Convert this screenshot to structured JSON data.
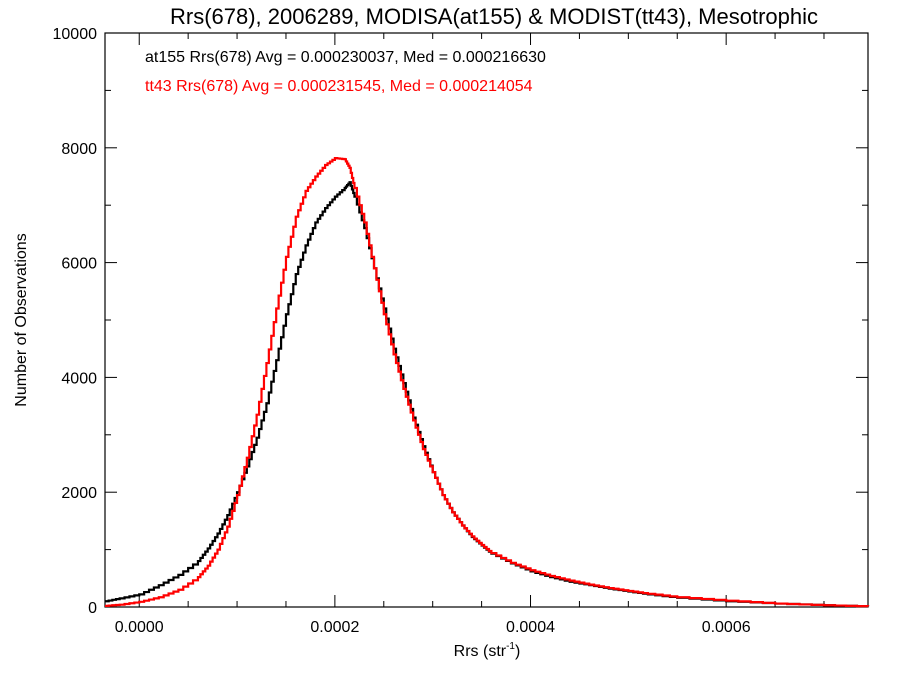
{
  "chart_data": {
    "type": "line",
    "title": "Rrs(678), 2006289, MODISA(at155) & MODIST(tt43), Mesotrophic",
    "xlabel": "Rrs (str",
    "xlabel_sup": "-1",
    "xlabel_end": ")",
    "ylabel": "Number of Observations",
    "xlim": [
      -3.5e-05,
      0.000745
    ],
    "ylim": [
      0,
      10000
    ],
    "x_ticks": [
      0.0,
      0.0002,
      0.0004,
      0.0006
    ],
    "x_tick_labels": [
      "0.0000",
      "0.0002",
      "0.0004",
      "0.0006"
    ],
    "y_ticks": [
      0,
      2000,
      4000,
      6000,
      8000,
      10000
    ],
    "y_tick_labels": [
      "0",
      "2000",
      "4000",
      "6000",
      "8000",
      "10000"
    ],
    "annotations": [
      {
        "text": "at155 Rrs(678) Avg = 0.000230037, Med = 0.000216630",
        "color": "#000000"
      },
      {
        "text": "tt43 Rrs(678) Avg = 0.000231545, Med = 0.000214054",
        "color": "#ff0000"
      }
    ],
    "series": [
      {
        "color": "#000000",
        "step": true,
        "x": [
          -3.5e-05,
          -2e-05,
          0.0,
          2e-05,
          4e-05,
          6e-05,
          7e-05,
          8e-05,
          9e-05,
          0.0001,
          0.00011,
          0.00012,
          0.00013,
          0.00014,
          0.00015,
          0.00016,
          0.00017,
          0.00018,
          0.00019,
          0.0002,
          0.00021,
          0.000215,
          0.00022,
          0.00023,
          0.00024,
          0.00025,
          0.00026,
          0.00027,
          0.00028,
          0.00029,
          0.0003,
          0.00031,
          0.00032,
          0.00033,
          0.00034,
          0.00035,
          0.00036,
          0.00038,
          0.0004,
          0.00042,
          0.00044,
          0.00046,
          0.00048,
          0.0005,
          0.00052,
          0.00055,
          0.0006,
          0.00065,
          0.0007,
          0.000745
        ],
        "y": [
          100,
          150,
          220,
          380,
          560,
          800,
          1020,
          1280,
          1600,
          2000,
          2450,
          2950,
          3550,
          4300,
          5100,
          5800,
          6300,
          6700,
          6950,
          7150,
          7300,
          7400,
          7150,
          6600,
          5900,
          5200,
          4500,
          3900,
          3300,
          2800,
          2350,
          1950,
          1650,
          1420,
          1220,
          1070,
          930,
          760,
          620,
          520,
          440,
          380,
          320,
          270,
          220,
          160,
          100,
          60,
          30,
          10
        ]
      },
      {
        "color": "#ff0000",
        "step": true,
        "x": [
          -3.5e-05,
          -2e-05,
          0.0,
          2e-05,
          4e-05,
          6e-05,
          7e-05,
          8e-05,
          9e-05,
          0.0001,
          0.00011,
          0.00012,
          0.00013,
          0.00014,
          0.00015,
          0.00016,
          0.00017,
          0.00018,
          0.00019,
          0.0002,
          0.00021,
          0.000215,
          0.00022,
          0.00023,
          0.00024,
          0.00025,
          0.00026,
          0.00027,
          0.00028,
          0.00029,
          0.0003,
          0.00031,
          0.00032,
          0.00033,
          0.00034,
          0.00035,
          0.00036,
          0.00038,
          0.0004,
          0.00042,
          0.00044,
          0.00046,
          0.00048,
          0.0005,
          0.00052,
          0.00055,
          0.0006,
          0.00065,
          0.0007,
          0.000745
        ],
        "y": [
          20,
          40,
          90,
          170,
          300,
          520,
          720,
          1000,
          1400,
          1950,
          2600,
          3350,
          4250,
          5200,
          6100,
          6800,
          7250,
          7500,
          7700,
          7820,
          7800,
          7650,
          7300,
          6700,
          5900,
          5100,
          4400,
          3800,
          3250,
          2750,
          2350,
          1950,
          1650,
          1420,
          1230,
          1080,
          940,
          770,
          640,
          540,
          460,
          390,
          330,
          280,
          230,
          170,
          110,
          60,
          30,
          10
        ]
      }
    ]
  }
}
